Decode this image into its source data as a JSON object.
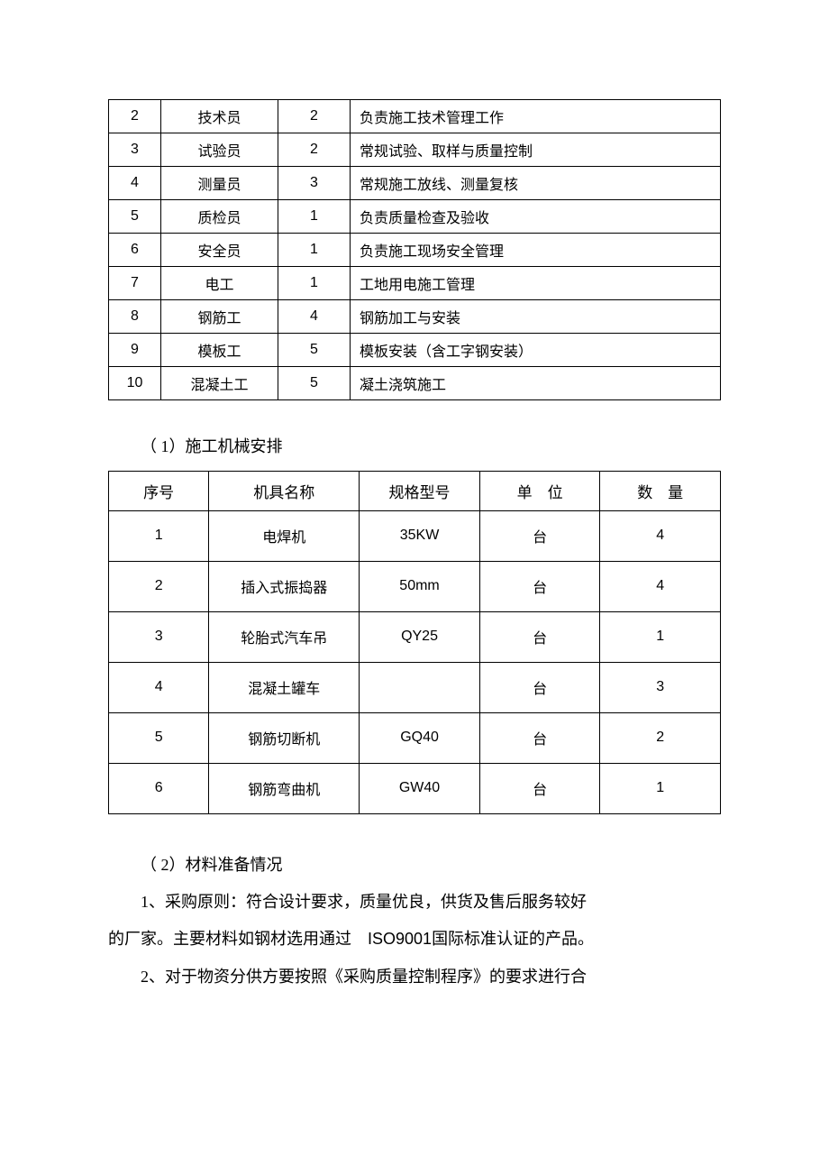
{
  "table1": {
    "rows": [
      {
        "no": "2",
        "role": "技术员",
        "count": "2",
        "duty": "负责施工技术管理工作"
      },
      {
        "no": "3",
        "role": "试验员",
        "count": "2",
        "duty": "常规试验、取样与质量控制"
      },
      {
        "no": "4",
        "role": "测量员",
        "count": "3",
        "duty": "常规施工放线、测量复核"
      },
      {
        "no": "5",
        "role": "质检员",
        "count": "1",
        "duty": "负责质量检查及验收"
      },
      {
        "no": "6",
        "role": "安全员",
        "count": "1",
        "duty": "负责施工现场安全管理"
      },
      {
        "no": "7",
        "role": "电工",
        "count": "1",
        "duty": "工地用电施工管理"
      },
      {
        "no": "8",
        "role": "钢筋工",
        "count": "4",
        "duty": "钢筋加工与安装"
      },
      {
        "no": "9",
        "role": "模板工",
        "count": "5",
        "duty": "模板安装（含工字钢安装）"
      },
      {
        "no": "10",
        "role": "混凝土工",
        "count": "5",
        "duty": "凝土浇筑施工"
      }
    ]
  },
  "section1_title": "（ 1）施工机械安排",
  "table2": {
    "headers": {
      "h1": "序号",
      "h2": "机具名称",
      "h3": "规格型号",
      "h4": "单　位",
      "h5": "数　量"
    },
    "rows": [
      {
        "no": "1",
        "name": "电焊机",
        "spec": "35KW",
        "unit": "台",
        "qty": "4"
      },
      {
        "no": "2",
        "name": "插入式振捣器",
        "spec": "50mm",
        "unit": "台",
        "qty": "4"
      },
      {
        "no": "3",
        "name": "轮胎式汽车吊",
        "spec": "QY25",
        "unit": "台",
        "qty": "1"
      },
      {
        "no": "4",
        "name": "混凝土罐车",
        "spec": "",
        "unit": "台",
        "qty": "3"
      },
      {
        "no": "5",
        "name": "钢筋切断机",
        "spec": "GQ40",
        "unit": "台",
        "qty": "2"
      },
      {
        "no": "6",
        "name": "钢筋弯曲机",
        "spec": "GW40",
        "unit": "台",
        "qty": "1"
      }
    ]
  },
  "section2_title": "（ 2）材料准备情况",
  "para1_a": "1、采购原则：符合设计要求，质量优良，供货及售后服务较好",
  "para1_b_pre": "的厂家。主要材料如钢材选用通过　",
  "para1_b_iso": "ISO9001",
  "para1_b_post": "国际标准认证的产品。",
  "para2": "2、对于物资分供方要按照《采购质量控制程序》的要求进行合"
}
